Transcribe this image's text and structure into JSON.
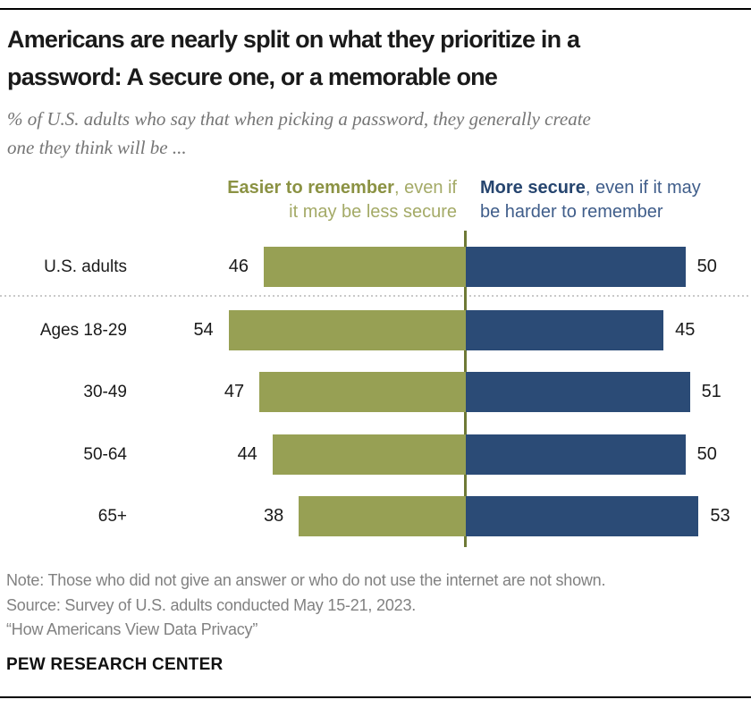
{
  "header": {
    "title_line1": "Americans are nearly split on what they prioritize in a",
    "title_line2": "password: A secure one, or a memorable one",
    "subtitle_line1": "% of U.S. adults who say that when picking a password, they generally create",
    "subtitle_line2": "one they think will be ...",
    "title_color": "#1a1a1a",
    "subtitle_color": "#757575"
  },
  "legend": {
    "easier": {
      "bold": "Easier to remember",
      "rest_line1": ", even if",
      "line2": "it may be less secure",
      "bold_color": "#8b9243",
      "rest_color": "#a4aa67"
    },
    "secure": {
      "bold": "More secure",
      "rest_line1": ", even if it may",
      "line2": "be harder to remember",
      "bold_color": "#26456f",
      "rest_color": "#3f5d8a"
    }
  },
  "chart_data": {
    "type": "bar",
    "subtype": "diverging-horizontal",
    "categories": [
      "U.S. adults",
      "Ages 18-29",
      "30-49",
      "50-64",
      "65+"
    ],
    "series": [
      {
        "name": "Easier to remember, even if it may be less secure",
        "side": "left",
        "values": [
          46,
          54,
          47,
          44,
          38
        ],
        "color": "#97a054"
      },
      {
        "name": "More secure, even if it may be harder to remember",
        "side": "right",
        "values": [
          50,
          45,
          51,
          50,
          53
        ],
        "color": "#2b4b76"
      }
    ],
    "unit": "%",
    "center_value": 0,
    "divider_color": "#6e7936",
    "grid": "off",
    "legend_position": "top",
    "value_labels": "outside-ends",
    "separator_after_first_row": true
  },
  "footer": {
    "note": "Note: Those who did not give an answer or who do not use the internet are not shown.",
    "source": "Source: Survey of U.S. adults conducted May 15-21, 2023.",
    "report": "“How Americans View Data Privacy”",
    "brand": "PEW RESEARCH CENTER"
  }
}
